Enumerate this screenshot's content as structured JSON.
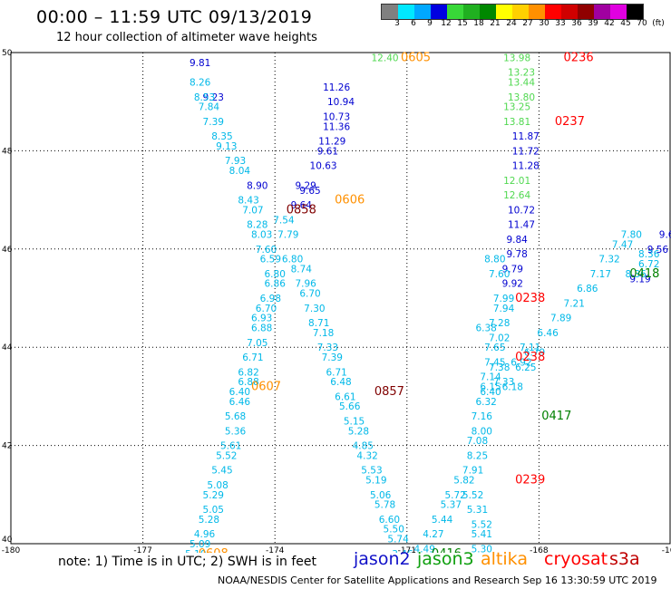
{
  "header": {
    "title": "00:00 – 11:59 UTC 09/13/2019",
    "subtitle": "12 hour collection of altimeter wave heights"
  },
  "colorbar": {
    "ticks": [
      "3",
      "6",
      "9",
      "12",
      "15",
      "18",
      "21",
      "24",
      "27",
      "30",
      "33",
      "36",
      "39",
      "42",
      "45",
      "70",
      "(ft)"
    ],
    "colors": [
      "#808080",
      "#00e8ff",
      "#00a8ff",
      "#0000e0",
      "#38d838",
      "#20b020",
      "#008800",
      "#ffff00",
      "#ffd000",
      "#ff9000",
      "#ff0000",
      "#d00000",
      "#900000",
      "#a000a0",
      "#e000e0",
      "#000000"
    ]
  },
  "note": "note:  1) Time is in UTC;  2) SWH is in feet",
  "legend": [
    {
      "label": "jason2",
      "color": "#1010c8"
    },
    {
      "label": "jason3",
      "color": "#10a010"
    },
    {
      "label": "altika",
      "color": "#ff9000"
    },
    {
      "label": "cryosat",
      "color": "#ff0000"
    },
    {
      "label": "s3a",
      "color": "#c00000"
    }
  ],
  "footer": "NOAA/NESDIS Center for Satellite Applications and Research    Sep 16 13:30:59 UTC 2019",
  "chart_data": {
    "type": "scatter",
    "xlim": [
      -180,
      -165
    ],
    "ylim": [
      40,
      50
    ],
    "xticks": [
      "-180",
      "-177",
      "-174",
      "-171",
      "-168",
      "-165"
    ],
    "yticks": [
      "40",
      "42",
      "44",
      "46",
      "48",
      "50"
    ],
    "grid": true,
    "series": [
      {
        "color": "#0000d0",
        "points": [
          [
            -175.7,
            49.8,
            "9.81"
          ],
          [
            -175.4,
            49.1,
            "9.23"
          ],
          [
            -173.3,
            47.3,
            "9.29"
          ],
          [
            -174.4,
            47.3,
            "8.90"
          ],
          [
            -172.6,
            49.3,
            "11.26"
          ],
          [
            -172.5,
            49.0,
            "10.94"
          ],
          [
            -172.6,
            48.7,
            "10.73"
          ],
          [
            -172.6,
            48.5,
            "11.36"
          ],
          [
            -172.7,
            48.2,
            "11.29"
          ],
          [
            -172.8,
            48.0,
            "9.61"
          ],
          [
            -172.9,
            47.7,
            "10.63"
          ],
          [
            -173.2,
            47.2,
            "9.65"
          ],
          [
            -173.4,
            46.9,
            "9.64"
          ],
          [
            -168.3,
            48.3,
            "11.87"
          ],
          [
            -168.3,
            48.0,
            "11.72"
          ],
          [
            -168.3,
            47.7,
            "11.28"
          ],
          [
            -168.4,
            46.8,
            "10.72"
          ],
          [
            -168.4,
            46.5,
            "11.47"
          ],
          [
            -168.5,
            46.2,
            "9.84"
          ],
          [
            -168.5,
            45.9,
            "9.78"
          ],
          [
            -168.6,
            45.6,
            "9.79"
          ],
          [
            -168.6,
            45.3,
            "9.92"
          ],
          [
            -165.7,
            45.4,
            "9.19"
          ],
          [
            -165.3,
            46.0,
            "9.56"
          ],
          [
            -165.1,
            46.3,
            "9.6"
          ]
        ]
      },
      {
        "color": "#00b8e8",
        "points": [
          [
            -175.7,
            49.4,
            "8.26"
          ],
          [
            -175.6,
            49.1,
            "8.53"
          ],
          [
            -175.5,
            48.9,
            "7.84"
          ],
          [
            -175.4,
            48.6,
            "7.39"
          ],
          [
            -175.2,
            48.3,
            "8.35"
          ],
          [
            -175.1,
            48.1,
            "9.13"
          ],
          [
            -174.9,
            47.8,
            "7.93"
          ],
          [
            -174.8,
            47.6,
            "8.04"
          ],
          [
            -174.6,
            47.0,
            "8.43"
          ],
          [
            -174.5,
            46.8,
            "7.07"
          ],
          [
            -174.4,
            46.5,
            "8.28"
          ],
          [
            -174.3,
            46.3,
            "8.03"
          ],
          [
            -174.2,
            46.0,
            "7.60"
          ],
          [
            -174.1,
            45.8,
            "6.59"
          ],
          [
            -174.0,
            45.5,
            "6.80"
          ],
          [
            -174.0,
            45.3,
            "6.86"
          ],
          [
            -174.1,
            45.0,
            "6.98"
          ],
          [
            -174.2,
            44.8,
            "6.70"
          ],
          [
            -174.3,
            44.6,
            "6.93"
          ],
          [
            -174.3,
            44.4,
            "6.88"
          ],
          [
            -174.4,
            44.1,
            "7.05"
          ],
          [
            -174.5,
            43.8,
            "6.71"
          ],
          [
            -174.6,
            43.5,
            "6.82"
          ],
          [
            -174.6,
            43.3,
            "6.88"
          ],
          [
            -174.8,
            43.1,
            "6.40"
          ],
          [
            -174.8,
            42.9,
            "6.46"
          ],
          [
            -174.9,
            42.6,
            "5.68"
          ],
          [
            -174.9,
            42.3,
            "5.36"
          ],
          [
            -175.0,
            42.0,
            "5.61"
          ],
          [
            -175.1,
            41.8,
            "5.52"
          ],
          [
            -175.2,
            41.5,
            "5.45"
          ],
          [
            -175.3,
            41.2,
            "5.08"
          ],
          [
            -175.4,
            41.0,
            "5.29"
          ],
          [
            -175.4,
            40.7,
            "5.05"
          ],
          [
            -175.5,
            40.5,
            "5.28"
          ],
          [
            -175.6,
            40.2,
            "4.96"
          ],
          [
            -175.7,
            40.0,
            "5.09"
          ],
          [
            -175.8,
            39.8,
            "5.10"
          ],
          [
            -175.9,
            39.6,
            "5.48"
          ],
          [
            -173.8,
            46.6,
            "7.54"
          ],
          [
            -173.7,
            46.3,
            "7.79"
          ],
          [
            -173.6,
            45.8,
            "6.80"
          ],
          [
            -173.4,
            45.6,
            "8.74"
          ],
          [
            -173.3,
            45.3,
            "7.96"
          ],
          [
            -173.2,
            45.1,
            "6.70"
          ],
          [
            -173.1,
            44.8,
            "7.30"
          ],
          [
            -173.0,
            44.5,
            "8.71"
          ],
          [
            -172.9,
            44.3,
            "7.18"
          ],
          [
            -172.8,
            44.0,
            "7.33"
          ],
          [
            -172.7,
            43.8,
            "7.39"
          ],
          [
            -172.6,
            43.5,
            "6.71"
          ],
          [
            -172.5,
            43.3,
            "6.48"
          ],
          [
            -172.4,
            43.0,
            "6.61"
          ],
          [
            -172.3,
            42.8,
            "5.66"
          ],
          [
            -172.2,
            42.5,
            "5.15"
          ],
          [
            -172.1,
            42.3,
            "5.28"
          ],
          [
            -172.0,
            42.0,
            "4.85"
          ],
          [
            -171.9,
            41.8,
            "4.32"
          ],
          [
            -171.8,
            41.5,
            "5.53"
          ],
          [
            -171.7,
            41.3,
            "5.19"
          ],
          [
            -171.6,
            41.0,
            "5.06"
          ],
          [
            -171.5,
            40.8,
            "5.78"
          ],
          [
            -171.4,
            40.5,
            "6.60"
          ],
          [
            -171.3,
            40.3,
            "5.50"
          ],
          [
            -171.2,
            40.1,
            "5.74"
          ],
          [
            -171.1,
            39.8,
            "3.46"
          ],
          [
            -171.0,
            39.6,
            "4.60"
          ],
          [
            -170.8,
            39.7,
            "4.47"
          ],
          [
            -170.6,
            39.9,
            "4.49"
          ],
          [
            -170.4,
            40.2,
            "4.27"
          ],
          [
            -170.2,
            40.5,
            "5.44"
          ],
          [
            -170.0,
            40.8,
            "5.37"
          ],
          [
            -169.9,
            41.0,
            "5.72"
          ],
          [
            -169.7,
            41.3,
            "5.82"
          ],
          [
            -169.5,
            41.0,
            "5.52"
          ],
          [
            -169.4,
            40.7,
            "5.31"
          ],
          [
            -169.3,
            40.4,
            "5.52"
          ],
          [
            -169.3,
            40.2,
            "5.41"
          ],
          [
            -169.3,
            39.9,
            "5.30"
          ],
          [
            -169.3,
            39.6,
            "5.62"
          ],
          [
            -168.8,
            45.0,
            "7.99"
          ],
          [
            -168.8,
            44.8,
            "7.94"
          ],
          [
            -168.9,
            44.5,
            "7.28"
          ],
          [
            -168.9,
            44.2,
            "7.02"
          ],
          [
            -169.0,
            44.0,
            "7.65"
          ],
          [
            -169.0,
            43.7,
            "7.45"
          ],
          [
            -169.1,
            43.4,
            "7.14"
          ],
          [
            -169.1,
            43.1,
            "6.40"
          ],
          [
            -169.2,
            42.9,
            "6.32"
          ],
          [
            -169.3,
            42.6,
            "7.16"
          ],
          [
            -169.3,
            42.3,
            "8.00"
          ],
          [
            -169.4,
            42.1,
            "7.08"
          ],
          [
            -169.4,
            41.8,
            "8.25"
          ],
          [
            -169.5,
            41.5,
            "7.91"
          ],
          [
            -168.9,
            43.6,
            "7.38"
          ],
          [
            -168.8,
            43.3,
            "7.33"
          ],
          [
            -168.6,
            43.2,
            "6.18"
          ],
          [
            -168.4,
            43.7,
            "6.92"
          ],
          [
            -168.1,
            43.9,
            "6.79"
          ],
          [
            -168.2,
            44.0,
            "7.11"
          ],
          [
            -168.3,
            43.6,
            "6.25"
          ],
          [
            -167.8,
            44.3,
            "6.46"
          ],
          [
            -167.5,
            44.6,
            "7.89"
          ],
          [
            -167.2,
            44.9,
            "7.21"
          ],
          [
            -166.9,
            45.2,
            "6.86"
          ],
          [
            -166.6,
            45.5,
            "7.17"
          ],
          [
            -166.4,
            45.8,
            "7.32"
          ],
          [
            -166.1,
            46.1,
            "7.47"
          ],
          [
            -165.9,
            46.3,
            "7.80"
          ],
          [
            -165.8,
            45.5,
            "8.36"
          ],
          [
            -165.5,
            45.9,
            "8.36"
          ],
          [
            -165.5,
            45.7,
            "6.72"
          ],
          [
            -169.0,
            45.8,
            "8.80"
          ],
          [
            -168.9,
            45.5,
            "7.60"
          ],
          [
            -169.2,
            44.4,
            "6.38"
          ],
          [
            -169.1,
            43.2,
            "6.15"
          ]
        ]
      },
      {
        "color": "#50d850",
        "points": [
          [
            -171.5,
            49.9,
            "12.40"
          ],
          [
            -168.5,
            49.9,
            "13.98"
          ],
          [
            -168.4,
            49.6,
            "13.23"
          ],
          [
            -168.4,
            49.4,
            "13.44"
          ],
          [
            -168.4,
            49.1,
            "13.80"
          ],
          [
            -168.5,
            48.9,
            "13.25"
          ],
          [
            -168.5,
            48.6,
            "13.81"
          ],
          [
            -168.5,
            47.4,
            "12.01"
          ],
          [
            -168.5,
            47.1,
            "12.64"
          ]
        ]
      },
      {
        "color": "#ff9000",
        "points": [
          [
            -170.8,
            49.9,
            "0605"
          ],
          [
            -172.3,
            47.0,
            "0606"
          ],
          [
            -174.2,
            43.2,
            "0607"
          ],
          [
            -175.4,
            39.8,
            "0608"
          ]
        ]
      },
      {
        "color": "#ff0000",
        "points": [
          [
            -167.1,
            49.9,
            "0236"
          ],
          [
            -167.3,
            48.6,
            "0237"
          ],
          [
            -168.2,
            45.0,
            "0238"
          ],
          [
            -168.2,
            43.8,
            "0238"
          ],
          [
            -168.2,
            41.3,
            "0239"
          ]
        ]
      },
      {
        "color": "#800000",
        "points": [
          [
            -173.4,
            46.8,
            "0858"
          ],
          [
            -171.4,
            43.1,
            "0857"
          ],
          [
            -170.7,
            39.6,
            "0856"
          ]
        ]
      },
      {
        "color": "#008000",
        "points": [
          [
            -165.6,
            45.5,
            "0418"
          ],
          [
            -167.6,
            42.6,
            "0417"
          ],
          [
            -170.1,
            39.8,
            "0416"
          ],
          [
            -170.4,
            39.6,
            "0415"
          ]
        ]
      }
    ]
  }
}
